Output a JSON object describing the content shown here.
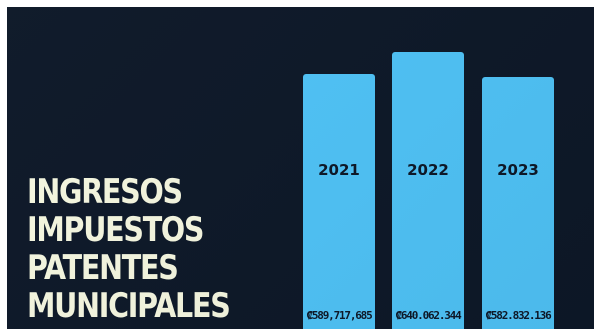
{
  "title_lines": [
    "INGRESOS",
    "IMPUESTOS",
    "PATENTES",
    "MUNICIPALES"
  ],
  "colors": {
    "background": "#0d1828",
    "bar": "#4fc3f7",
    "title": "#f5f7e0"
  },
  "chart_data": {
    "type": "bar",
    "categories": [
      "2021",
      "2022",
      "2023"
    ],
    "values": [
      589717685,
      640062344,
      582832136
    ],
    "data_labels": [
      "₡589,717,685",
      "₡640.062.344",
      "₡582.832.136"
    ],
    "ylim": [
      0,
      700000000
    ],
    "grid": false,
    "legend": "none"
  }
}
